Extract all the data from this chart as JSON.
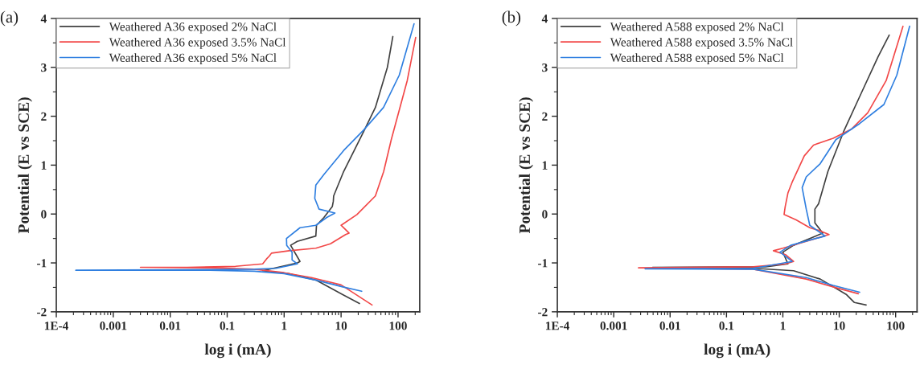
{
  "chart_data": [
    {
      "type": "line",
      "annotations": [
        "(a)"
      ],
      "xlabel": "log i (mA)",
      "ylabel": "Potential (E vs SCE)",
      "log": "x",
      "grid": false,
      "legend": "top left",
      "xlim": [
        0.0001,
        240
      ],
      "xticks": [
        {
          "value": 0.0001,
          "label": "1E-4"
        },
        0.001,
        0.01,
        0.1,
        1,
        10,
        100
      ],
      "ylim": [
        -2,
        4
      ],
      "yticks": [
        -2,
        -1,
        0,
        1,
        2,
        3,
        4
      ],
      "series": [
        {
          "name": "Weathered A36 exposed 2% NaCl",
          "color": "#404040",
          "x": [
            21,
            10.7,
            3.6,
            1.2,
            0.42,
            1.71,
            1.9,
            1.3,
            1.7,
            3.6,
            3.7,
            5.0,
            7.0,
            7.3,
            7.4,
            11.1,
            25,
            40,
            65,
            81
          ],
          "values": [
            -1.83,
            -1.65,
            -1.35,
            -1.22,
            -1.16,
            -1.0,
            -0.97,
            -0.64,
            -0.56,
            -0.45,
            -0.23,
            -0.07,
            0.15,
            0.26,
            0.37,
            0.87,
            1.69,
            2.18,
            3.0,
            3.63
          ]
        },
        {
          "name": "Weathered A36 exposed 3.5% NaCl",
          "color": "#f24848",
          "x": [
            35,
            10,
            3,
            1,
            0.3,
            0.05,
            0.003,
            0.02,
            0.14,
            0.42,
            0.49,
            0.55,
            0.6,
            1.23,
            3.6,
            6.5,
            12,
            13.8,
            10,
            19,
            40,
            56,
            76,
            145,
            204
          ],
          "values": [
            -1.86,
            -1.45,
            -1.3,
            -1.2,
            -1.13,
            -1.1,
            -1.09,
            -1.09,
            -1.07,
            -1.02,
            -0.92,
            -0.86,
            -0.8,
            -0.75,
            -0.7,
            -0.61,
            -0.42,
            -0.39,
            -0.23,
            -0.01,
            0.37,
            0.87,
            1.52,
            2.73,
            3.61
          ]
        },
        {
          "name": "Weathered A36 exposed 5% NaCl",
          "color": "#2f7fe0",
          "x": [
            23,
            10.7,
            3.6,
            1,
            0.3,
            0.05,
            0.00022,
            0.01,
            0.3,
            0.72,
            1.71,
            1.38,
            1.38,
            1.11,
            1.1,
            1.9,
            3.6,
            5.6,
            7.8,
            4.1,
            3.45,
            3.6,
            5.0,
            11.1,
            25,
            55.6,
            105,
            191
          ],
          "values": [
            -1.58,
            -1.49,
            -1.35,
            -1.22,
            -1.17,
            -1.15,
            -1.15,
            -1.14,
            -1.13,
            -1.11,
            -1.02,
            -0.94,
            -0.78,
            -0.64,
            -0.5,
            -0.28,
            -0.23,
            -0.07,
            0.02,
            0.1,
            0.32,
            0.59,
            0.81,
            1.3,
            1.72,
            2.18,
            2.84,
            3.89
          ]
        }
      ]
    },
    {
      "type": "line",
      "annotations": [
        "(b)"
      ],
      "xlabel": "log i (mA)",
      "ylabel": "Potential (E vs SCE)",
      "log": "x",
      "grid": false,
      "legend": "top left",
      "xlim": [
        0.0001,
        240
      ],
      "xticks": [
        {
          "value": 0.0001,
          "label": "1E-4"
        },
        0.001,
        0.01,
        0.1,
        1,
        10,
        100
      ],
      "ylim": [
        -2,
        4
      ],
      "yticks": [
        -2,
        -1,
        0,
        1,
        2,
        3,
        4
      ],
      "series": [
        {
          "name": "Weathered A588 exposed 2% NaCl",
          "color": "#404040",
          "x": [
            30,
            18.6,
            13.5,
            4.6,
            1.55,
            0.3,
            0.0049,
            0.5,
            1.23,
            1.0,
            1.55,
            5.1,
            3.7,
            3.7,
            4.3,
            6.3,
            12,
            23,
            49,
            77
          ],
          "values": [
            -1.86,
            -1.81,
            -1.65,
            -1.33,
            -1.16,
            -1.11,
            -1.09,
            -1.08,
            -1.02,
            -0.78,
            -0.64,
            -0.39,
            -0.18,
            0.1,
            0.21,
            0.87,
            1.69,
            2.4,
            3.22,
            3.66
          ]
        },
        {
          "name": "Weathered A588 exposed 3.5% NaCl",
          "color": "#f24848",
          "x": [
            21.8,
            7.8,
            2.6,
            0.3,
            0.00275,
            0.3,
            1.11,
            1.55,
            1.11,
            0.68,
            1.0,
            2.6,
            6.6,
            4.5,
            3.0,
            1.72,
            1.05,
            1.1,
            1.23,
            1.46,
            2.4,
            3.5,
            7.8,
            16.6,
            32,
            68,
            135
          ],
          "values": [
            -1.63,
            -1.49,
            -1.33,
            -1.13,
            -1.1,
            -1.08,
            -1.02,
            -0.97,
            -0.83,
            -0.75,
            -0.7,
            -0.56,
            -0.42,
            -0.34,
            -0.28,
            -0.12,
            -0.01,
            0.15,
            0.43,
            0.65,
            1.19,
            1.41,
            1.55,
            1.74,
            2.07,
            2.73,
            3.84
          ]
        },
        {
          "name": "Weathered A588 exposed 5% NaCl",
          "color": "#2f7fe0",
          "x": [
            23,
            7.8,
            2.6,
            0.3,
            0.0036,
            0.3,
            1.46,
            0.89,
            1.38,
            5.6,
            3.0,
            2.6,
            2.2,
            2.6,
            4.6,
            8.7,
            23,
            62,
            105,
            177
          ],
          "values": [
            -1.6,
            -1.46,
            -1.3,
            -1.13,
            -1.12,
            -1.11,
            -0.97,
            -0.78,
            -0.64,
            -0.45,
            -0.23,
            0.1,
            0.54,
            0.76,
            1.03,
            1.52,
            1.85,
            2.24,
            2.84,
            3.84
          ]
        }
      ]
    }
  ]
}
